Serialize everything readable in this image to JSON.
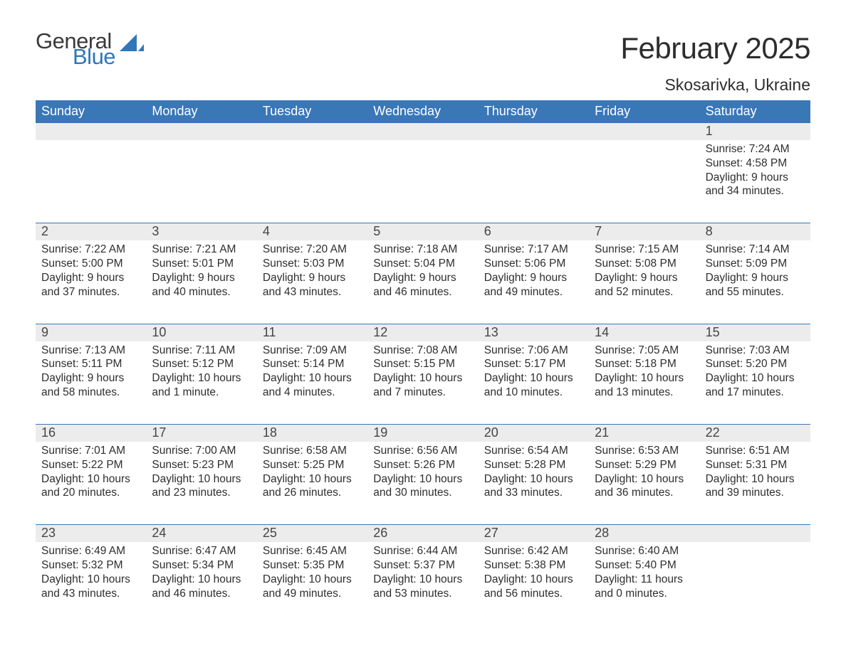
{
  "brand": {
    "part1": "General",
    "part2": "Blue",
    "sail_color": "#2f77b9",
    "text_gray": "#3a3a3a"
  },
  "title": "February 2025",
  "location": "Skosarivka, Ukraine",
  "colors": {
    "header_bg": "#3a77b7",
    "header_text": "#ffffff",
    "band_bg": "#ececec",
    "rule": "#3a77b7",
    "body_text": "#2e2e2e",
    "daynum_text": "#454545",
    "page_bg": "#ffffff"
  },
  "font": {
    "family": "Arial",
    "title_size": 42,
    "location_size": 23,
    "weekday_size": 18,
    "daynum_size": 18,
    "body_size": 15.5
  },
  "weekdays": [
    "Sunday",
    "Monday",
    "Tuesday",
    "Wednesday",
    "Thursday",
    "Friday",
    "Saturday"
  ],
  "weeks": [
    {
      "days": [
        null,
        null,
        null,
        null,
        null,
        null,
        {
          "n": "1",
          "sunrise": "7:24 AM",
          "sunset": "4:58 PM",
          "daylight": "9 hours and 34 minutes."
        }
      ]
    },
    {
      "days": [
        {
          "n": "2",
          "sunrise": "7:22 AM",
          "sunset": "5:00 PM",
          "daylight": "9 hours and 37 minutes."
        },
        {
          "n": "3",
          "sunrise": "7:21 AM",
          "sunset": "5:01 PM",
          "daylight": "9 hours and 40 minutes."
        },
        {
          "n": "4",
          "sunrise": "7:20 AM",
          "sunset": "5:03 PM",
          "daylight": "9 hours and 43 minutes."
        },
        {
          "n": "5",
          "sunrise": "7:18 AM",
          "sunset": "5:04 PM",
          "daylight": "9 hours and 46 minutes."
        },
        {
          "n": "6",
          "sunrise": "7:17 AM",
          "sunset": "5:06 PM",
          "daylight": "9 hours and 49 minutes."
        },
        {
          "n": "7",
          "sunrise": "7:15 AM",
          "sunset": "5:08 PM",
          "daylight": "9 hours and 52 minutes."
        },
        {
          "n": "8",
          "sunrise": "7:14 AM",
          "sunset": "5:09 PM",
          "daylight": "9 hours and 55 minutes."
        }
      ]
    },
    {
      "days": [
        {
          "n": "9",
          "sunrise": "7:13 AM",
          "sunset": "5:11 PM",
          "daylight": "9 hours and 58 minutes."
        },
        {
          "n": "10",
          "sunrise": "7:11 AM",
          "sunset": "5:12 PM",
          "daylight": "10 hours and 1 minute."
        },
        {
          "n": "11",
          "sunrise": "7:09 AM",
          "sunset": "5:14 PM",
          "daylight": "10 hours and 4 minutes."
        },
        {
          "n": "12",
          "sunrise": "7:08 AM",
          "sunset": "5:15 PM",
          "daylight": "10 hours and 7 minutes."
        },
        {
          "n": "13",
          "sunrise": "7:06 AM",
          "sunset": "5:17 PM",
          "daylight": "10 hours and 10 minutes."
        },
        {
          "n": "14",
          "sunrise": "7:05 AM",
          "sunset": "5:18 PM",
          "daylight": "10 hours and 13 minutes."
        },
        {
          "n": "15",
          "sunrise": "7:03 AM",
          "sunset": "5:20 PM",
          "daylight": "10 hours and 17 minutes."
        }
      ]
    },
    {
      "days": [
        {
          "n": "16",
          "sunrise": "7:01 AM",
          "sunset": "5:22 PM",
          "daylight": "10 hours and 20 minutes."
        },
        {
          "n": "17",
          "sunrise": "7:00 AM",
          "sunset": "5:23 PM",
          "daylight": "10 hours and 23 minutes."
        },
        {
          "n": "18",
          "sunrise": "6:58 AM",
          "sunset": "5:25 PM",
          "daylight": "10 hours and 26 minutes."
        },
        {
          "n": "19",
          "sunrise": "6:56 AM",
          "sunset": "5:26 PM",
          "daylight": "10 hours and 30 minutes."
        },
        {
          "n": "20",
          "sunrise": "6:54 AM",
          "sunset": "5:28 PM",
          "daylight": "10 hours and 33 minutes."
        },
        {
          "n": "21",
          "sunrise": "6:53 AM",
          "sunset": "5:29 PM",
          "daylight": "10 hours and 36 minutes."
        },
        {
          "n": "22",
          "sunrise": "6:51 AM",
          "sunset": "5:31 PM",
          "daylight": "10 hours and 39 minutes."
        }
      ]
    },
    {
      "days": [
        {
          "n": "23",
          "sunrise": "6:49 AM",
          "sunset": "5:32 PM",
          "daylight": "10 hours and 43 minutes."
        },
        {
          "n": "24",
          "sunrise": "6:47 AM",
          "sunset": "5:34 PM",
          "daylight": "10 hours and 46 minutes."
        },
        {
          "n": "25",
          "sunrise": "6:45 AM",
          "sunset": "5:35 PM",
          "daylight": "10 hours and 49 minutes."
        },
        {
          "n": "26",
          "sunrise": "6:44 AM",
          "sunset": "5:37 PM",
          "daylight": "10 hours and 53 minutes."
        },
        {
          "n": "27",
          "sunrise": "6:42 AM",
          "sunset": "5:38 PM",
          "daylight": "10 hours and 56 minutes."
        },
        {
          "n": "28",
          "sunrise": "6:40 AM",
          "sunset": "5:40 PM",
          "daylight": "11 hours and 0 minutes."
        },
        null
      ]
    }
  ],
  "labels": {
    "sunrise": "Sunrise: ",
    "sunset": "Sunset: ",
    "daylight": "Daylight: "
  }
}
